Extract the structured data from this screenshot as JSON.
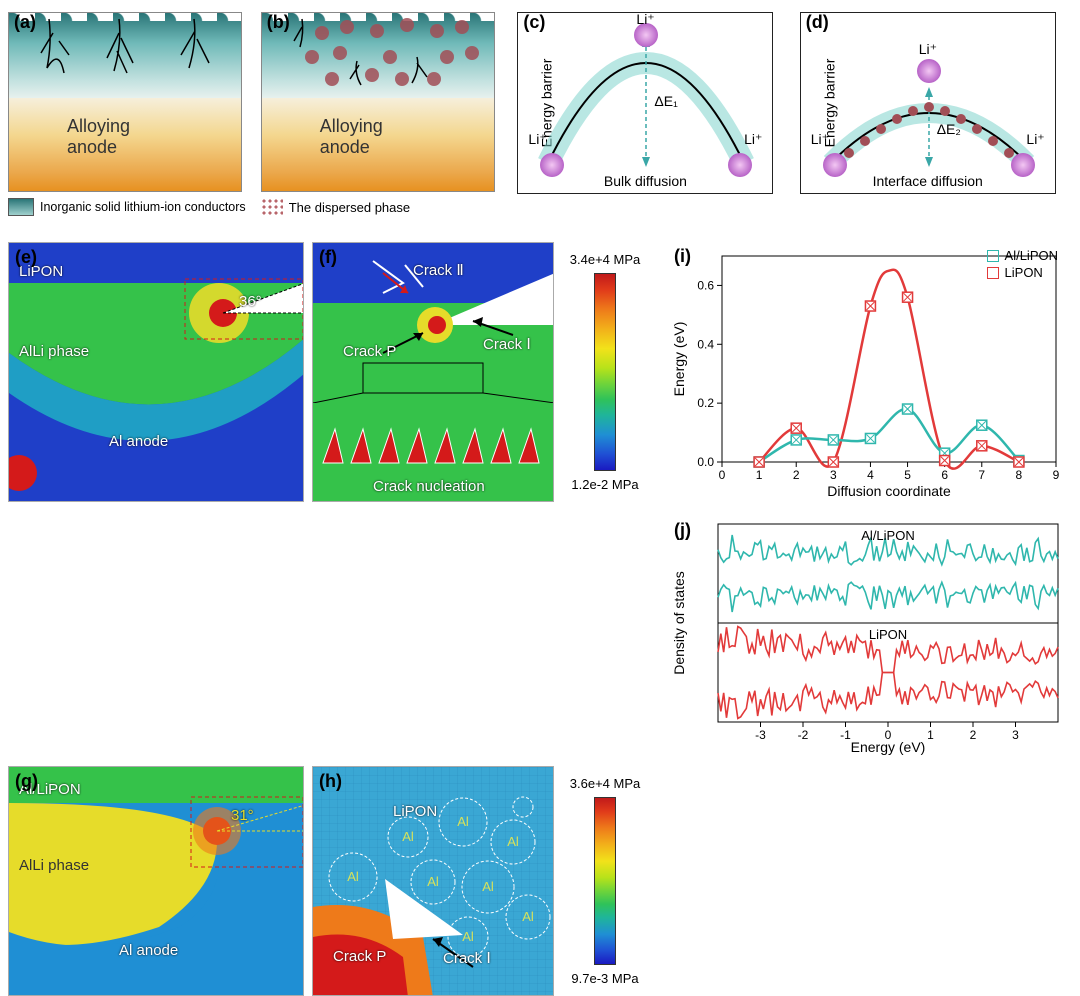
{
  "panel_labels": {
    "a": "(a)",
    "b": "(b)",
    "c": "(c)",
    "d": "(d)",
    "e": "(e)",
    "f": "(f)",
    "g": "(g)",
    "h": "(h)",
    "i": "(i)",
    "j": "(j)"
  },
  "ab": {
    "anode_text": "Alloying anode",
    "legend1": "Inorganic solid lithium-ion conductors",
    "legend2": "The dispersed phase",
    "colors": {
      "top_grad": [
        "#2a7577",
        "#6fb9b8",
        "#c4e2e0",
        "#e7f1ee"
      ],
      "bot_grad": [
        "#f6efdb",
        "#f4d78f",
        "#eba84c",
        "#e79120"
      ],
      "crack": "#000000",
      "particle": "#a14e56"
    }
  },
  "cd": {
    "y_axis": "Energy barrier",
    "c_x": "Bulk diffusion",
    "d_x": "Interface diffusion",
    "li": "Li⁺",
    "de1": "ΔE₁",
    "de2": "ΔE₂",
    "arc_color": "#7fd4cc",
    "sphere_color": "#d48bd8",
    "small_particle": "#a14e56",
    "c_peak_height": 1.0,
    "d_peak_height": 0.55
  },
  "e": {
    "top_label": "LiPON",
    "mid_label": "AlLi phase",
    "bot_label": "Al anode",
    "angle": "36°",
    "colors": {
      "bg": "#1f3fc8",
      "green": "#35c24a",
      "yellow": "#e6dc2a",
      "red": "#d41a1a",
      "cyan": "#1fb7c4"
    }
  },
  "f": {
    "crack1": "Crack Ⅰ",
    "crack2": "Crack Ⅱ",
    "crackP": "Crack P",
    "nucl": "Crack nucleation"
  },
  "cbar1": {
    "max": "3.4e+4 MPa",
    "min": "1.2e-2 MPa"
  },
  "g": {
    "top_label": "Al/LiPON",
    "mid_label": "AlLi phase",
    "bot_label": "Al anode",
    "angle": "31°"
  },
  "h": {
    "lipon": "LiPON",
    "al": "Al",
    "crack1": "Crack Ⅰ",
    "crackP": "Crack P"
  },
  "cbar2": {
    "max": "3.6e+4 MPa",
    "min": "9.7e-3 MPa"
  },
  "chartI": {
    "title": "",
    "x_label": "Diffusion coordinate",
    "y_label": "Energy (eV)",
    "xlim": [
      0,
      9
    ],
    "ylim": [
      0,
      0.7
    ],
    "xticks": [
      0,
      1,
      2,
      3,
      4,
      5,
      6,
      7,
      8,
      9
    ],
    "yticks": [
      0.0,
      0.2,
      0.4,
      0.6
    ],
    "series": [
      {
        "name": "Al/LiPON",
        "color": "#2fb7ad",
        "marker": "square",
        "x": [
          1,
          2,
          3,
          4,
          5,
          6,
          7,
          8
        ],
        "y": [
          0.0,
          0.075,
          0.075,
          0.08,
          0.18,
          0.03,
          0.125,
          0.005
        ]
      },
      {
        "name": "LiPON",
        "color": "#e23a3a",
        "marker": "square",
        "x": [
          1,
          2,
          3,
          4,
          5,
          6,
          7,
          8
        ],
        "y": [
          0.0,
          0.115,
          0.0,
          0.53,
          0.56,
          0.005,
          0.055,
          0.0
        ]
      }
    ],
    "background": "#ffffff",
    "grid": false,
    "smooth_lipon_peak": 0.65
  },
  "chartJ": {
    "x_label": "Energy (eV)",
    "y_label": "Density of states",
    "xlim": [
      -4,
      4
    ],
    "xticks": [
      -3,
      -2,
      -1,
      0,
      1,
      2,
      3
    ],
    "top_label": "Al/LiPON",
    "bot_label": "LiPON",
    "top_color": "#2fb7ad",
    "bot_color": "#e23a3a",
    "background": "#ffffff"
  },
  "fonts": {
    "label": 18,
    "axis": 14,
    "tick": 12,
    "sim_text": 15
  }
}
